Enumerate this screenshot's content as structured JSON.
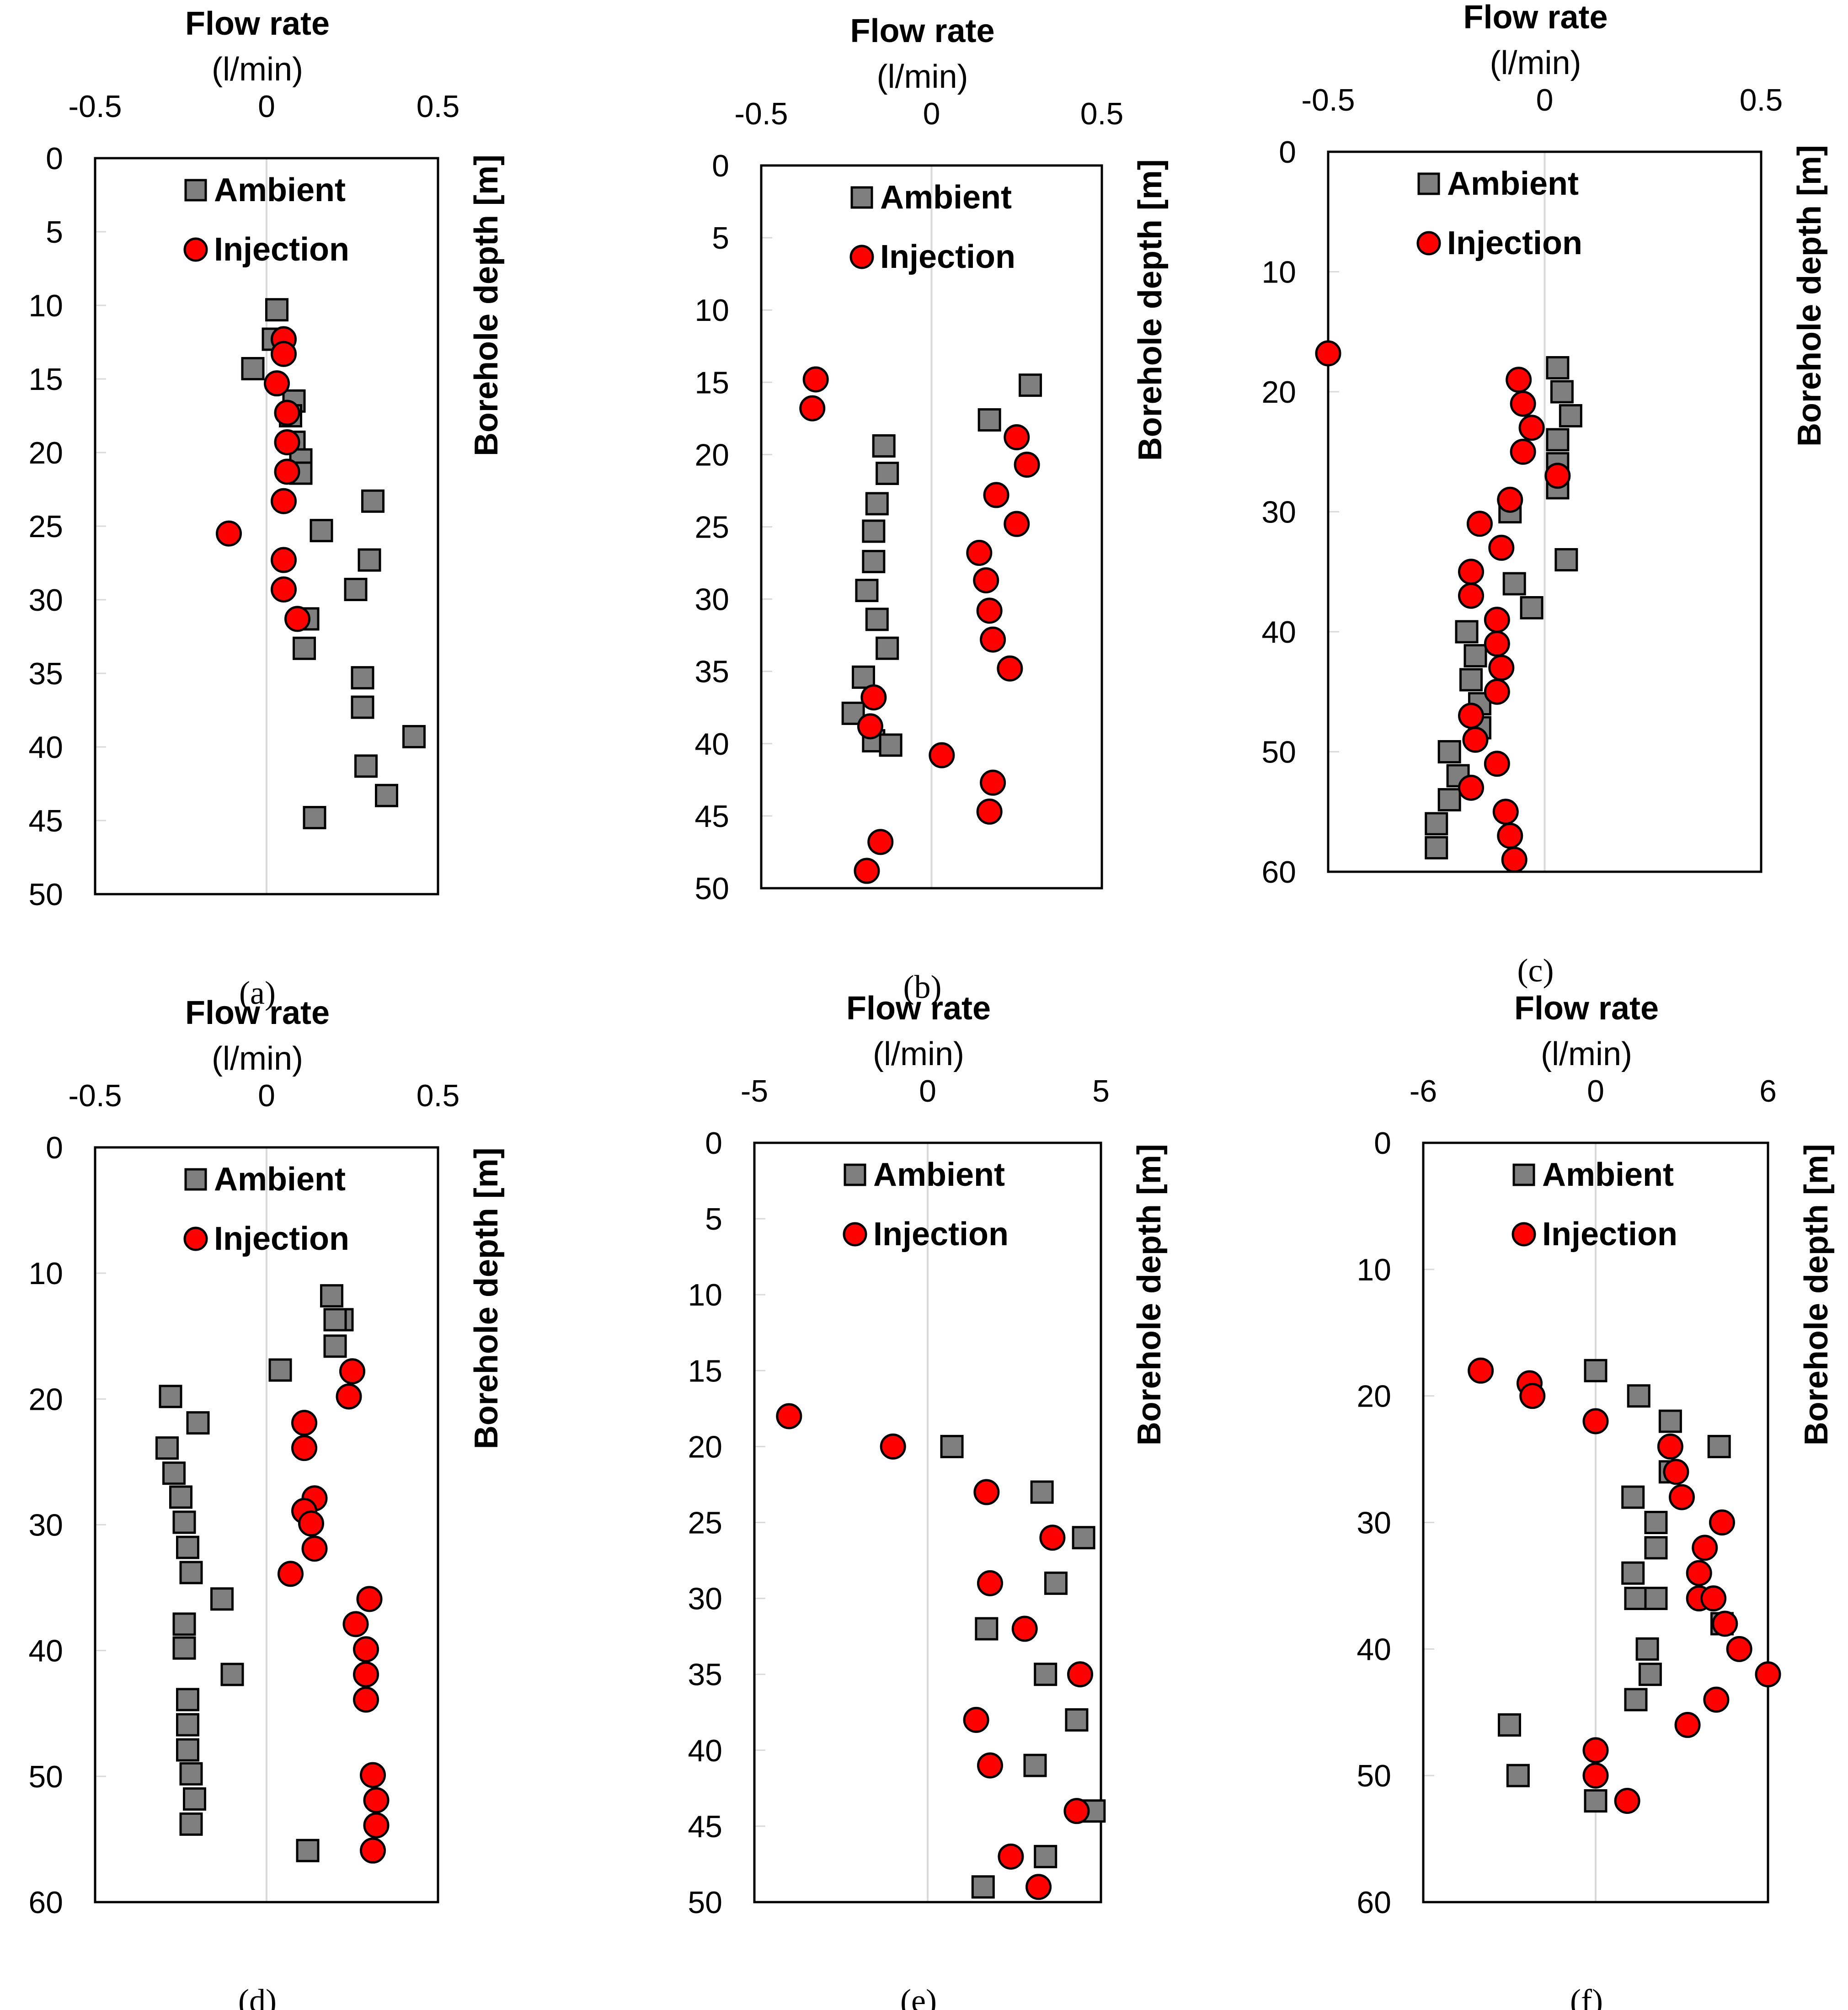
{
  "chart_data": [
    {
      "type": "scatter",
      "caption": "(a)",
      "title": "Flow rate",
      "xlabel": "(l/min)",
      "ylabel": "Borehole depth [m]",
      "xlim": [
        -0.5,
        0.5
      ],
      "xticks": [
        "-0.5",
        "0",
        "0.5"
      ],
      "ylim": [
        0,
        50
      ],
      "yticks": [
        "0",
        "5",
        "10",
        "15",
        "20",
        "25",
        "30",
        "35",
        "40",
        "45",
        "50"
      ],
      "legend": [
        "Ambient",
        "Injection"
      ],
      "series": [
        {
          "name": "Ambient",
          "marker": "square",
          "color": "#7f7f7f",
          "points": [
            [
              0.03,
              10.3
            ],
            [
              0.02,
              12.3
            ],
            [
              -0.04,
              14.3
            ],
            [
              0.08,
              16.5
            ],
            [
              0.07,
              17.5
            ],
            [
              0.08,
              19.3
            ],
            [
              0.1,
              20.5
            ],
            [
              0.1,
              21.4
            ],
            [
              0.31,
              23.3
            ],
            [
              0.16,
              25.3
            ],
            [
              0.3,
              27.3
            ],
            [
              0.26,
              29.3
            ],
            [
              0.12,
              31.3
            ],
            [
              0.11,
              33.3
            ],
            [
              0.28,
              35.3
            ],
            [
              0.28,
              37.3
            ],
            [
              0.43,
              39.3
            ],
            [
              0.29,
              41.3
            ],
            [
              0.35,
              43.3
            ],
            [
              0.14,
              44.8
            ]
          ]
        },
        {
          "name": "Injection",
          "marker": "circle",
          "color": "#ff0000",
          "points": [
            [
              0.05,
              12.3
            ],
            [
              0.05,
              13.3
            ],
            [
              0.03,
              15.3
            ],
            [
              0.06,
              17.3
            ],
            [
              0.06,
              19.3
            ],
            [
              0.06,
              21.3
            ],
            [
              0.05,
              23.3
            ],
            [
              -0.11,
              25.5
            ],
            [
              0.05,
              27.3
            ],
            [
              0.05,
              29.3
            ],
            [
              0.09,
              31.3
            ]
          ]
        }
      ]
    },
    {
      "type": "scatter",
      "caption": "(b)",
      "title": "Flow rate",
      "xlabel": "(l/min)",
      "ylabel": "Borehole depth [m]",
      "xlim": [
        -0.5,
        0.5
      ],
      "xticks": [
        "-0.5",
        "0",
        "0.5"
      ],
      "ylim": [
        0,
        50
      ],
      "yticks": [
        "0",
        "5",
        "10",
        "15",
        "20",
        "25",
        "30",
        "35",
        "40",
        "45",
        "50"
      ],
      "legend": [
        "Ambient",
        "Injection"
      ],
      "series": [
        {
          "name": "Ambient",
          "marker": "square",
          "color": "#7f7f7f",
          "points": [
            [
              0.29,
              15.2
            ],
            [
              0.17,
              17.6
            ],
            [
              -0.14,
              19.4
            ],
            [
              -0.13,
              21.3
            ],
            [
              -0.16,
              23.4
            ],
            [
              -0.17,
              25.3
            ],
            [
              -0.17,
              27.4
            ],
            [
              -0.19,
              29.4
            ],
            [
              -0.16,
              31.4
            ],
            [
              -0.13,
              33.4
            ],
            [
              -0.2,
              35.4
            ],
            [
              -0.23,
              37.9
            ],
            [
              -0.17,
              39.8
            ],
            [
              -0.12,
              40.1
            ]
          ]
        },
        {
          "name": "Injection",
          "marker": "circle",
          "color": "#ff0000",
          "points": [
            [
              -0.34,
              14.8
            ],
            [
              -0.35,
              16.8
            ],
            [
              0.25,
              18.8
            ],
            [
              0.28,
              20.7
            ],
            [
              0.19,
              22.8
            ],
            [
              0.25,
              24.8
            ],
            [
              0.14,
              26.8
            ],
            [
              0.16,
              28.7
            ],
            [
              0.17,
              30.8
            ],
            [
              0.18,
              32.8
            ],
            [
              0.23,
              34.8
            ],
            [
              -0.17,
              36.8
            ],
            [
              -0.18,
              38.8
            ],
            [
              0.03,
              40.8
            ],
            [
              0.18,
              42.7
            ],
            [
              0.17,
              44.7
            ],
            [
              -0.15,
              46.8
            ],
            [
              -0.19,
              48.8
            ]
          ]
        }
      ]
    },
    {
      "type": "scatter",
      "caption": "(c)",
      "title": "Flow rate",
      "xlabel": "(l/min)",
      "ylabel": "Borehole depth [m]",
      "xlim": [
        -0.5,
        0.5
      ],
      "xticks": [
        "-0.5",
        "0",
        "0.5"
      ],
      "ylim": [
        0,
        60
      ],
      "yticks": [
        "0",
        "10",
        "20",
        "30",
        "40",
        "50",
        "60"
      ],
      "legend": [
        "Ambient",
        "Injection"
      ],
      "series": [
        {
          "name": "Ambient",
          "marker": "square",
          "color": "#7f7f7f",
          "points": [
            [
              0.03,
              18.0
            ],
            [
              0.04,
              20.0
            ],
            [
              0.06,
              22.0
            ],
            [
              0.03,
              24.0
            ],
            [
              0.03,
              26.0
            ],
            [
              0.03,
              28.0
            ],
            [
              -0.08,
              30.0
            ],
            [
              0.05,
              34.0
            ],
            [
              -0.07,
              36.0
            ],
            [
              -0.03,
              38.0
            ],
            [
              -0.18,
              40.0
            ],
            [
              -0.16,
              42.0
            ],
            [
              -0.17,
              44.0
            ],
            [
              -0.15,
              46.0
            ],
            [
              -0.15,
              48.0
            ],
            [
              -0.22,
              50.0
            ],
            [
              -0.2,
              52.0
            ],
            [
              -0.22,
              54.0
            ],
            [
              -0.25,
              56.0
            ],
            [
              -0.25,
              58.0
            ]
          ]
        },
        {
          "name": "Injection",
          "marker": "circle",
          "color": "#ff0000",
          "points": [
            [
              -0.5,
              16.8
            ],
            [
              -0.06,
              19.0
            ],
            [
              -0.05,
              21.0
            ],
            [
              -0.03,
              23.0
            ],
            [
              -0.05,
              25.0
            ],
            [
              0.03,
              27.0
            ],
            [
              -0.08,
              29.0
            ],
            [
              -0.15,
              31.0
            ],
            [
              -0.1,
              33.0
            ],
            [
              -0.17,
              35.0
            ],
            [
              -0.17,
              37.0
            ],
            [
              -0.11,
              39.0
            ],
            [
              -0.11,
              41.0
            ],
            [
              -0.1,
              43.0
            ],
            [
              -0.11,
              45.0
            ],
            [
              -0.17,
              47.0
            ],
            [
              -0.16,
              49.0
            ],
            [
              -0.11,
              51.0
            ],
            [
              -0.17,
              53.0
            ],
            [
              -0.09,
              55.0
            ],
            [
              -0.08,
              57.0
            ],
            [
              -0.07,
              59.0
            ]
          ]
        }
      ]
    },
    {
      "type": "scatter",
      "caption": "(d)",
      "title": "Flow rate",
      "xlabel": "(l/min)",
      "ylabel": "Borehole depth [m]",
      "xlim": [
        -0.5,
        0.5
      ],
      "xticks": [
        "-0.5",
        "0",
        "0.5"
      ],
      "ylim": [
        0,
        60
      ],
      "yticks": [
        "0",
        "10",
        "20",
        "30",
        "40",
        "50",
        "60"
      ],
      "legend": [
        "Ambient",
        "Injection"
      ],
      "series": [
        {
          "name": "Ambient",
          "marker": "square",
          "color": "#7f7f7f",
          "points": [
            [
              0.19,
              11.8
            ],
            [
              0.22,
              13.7
            ],
            [
              0.2,
              13.7
            ],
            [
              0.2,
              15.8
            ],
            [
              0.04,
              17.7
            ],
            [
              -0.28,
              19.8
            ],
            [
              -0.2,
              21.9
            ],
            [
              -0.29,
              23.9
            ],
            [
              -0.27,
              25.9
            ],
            [
              -0.25,
              27.8
            ],
            [
              -0.24,
              29.8
            ],
            [
              -0.23,
              31.8
            ],
            [
              -0.22,
              33.8
            ],
            [
              -0.13,
              35.9
            ],
            [
              -0.24,
              37.9
            ],
            [
              -0.24,
              39.8
            ],
            [
              -0.1,
              41.9
            ],
            [
              -0.23,
              43.9
            ],
            [
              -0.23,
              45.9
            ],
            [
              -0.23,
              47.9
            ],
            [
              -0.22,
              49.8
            ],
            [
              -0.21,
              51.8
            ],
            [
              -0.22,
              53.8
            ],
            [
              0.12,
              55.9
            ]
          ]
        },
        {
          "name": "Injection",
          "marker": "circle",
          "color": "#ff0000",
          "points": [
            [
              0.25,
              17.8
            ],
            [
              0.24,
              19.8
            ],
            [
              0.11,
              21.9
            ],
            [
              0.11,
              23.9
            ],
            [
              0.14,
              27.9
            ],
            [
              0.11,
              28.9
            ],
            [
              0.13,
              29.9
            ],
            [
              0.14,
              31.9
            ],
            [
              0.07,
              33.9
            ],
            [
              0.3,
              35.9
            ],
            [
              0.26,
              37.9
            ],
            [
              0.29,
              39.9
            ],
            [
              0.29,
              41.9
            ],
            [
              0.29,
              43.9
            ],
            [
              0.31,
              49.9
            ],
            [
              0.32,
              51.9
            ],
            [
              0.32,
              53.9
            ],
            [
              0.31,
              55.9
            ]
          ]
        }
      ]
    },
    {
      "type": "scatter",
      "caption": "(e)",
      "title": "Flow rate",
      "xlabel": "(l/min)",
      "ylabel": "Borehole depth [m]",
      "xlim": [
        -5,
        5
      ],
      "xticks": [
        "-5",
        "0",
        "5"
      ],
      "ylim": [
        0,
        50
      ],
      "yticks": [
        "0",
        "5",
        "10",
        "15",
        "20",
        "25",
        "30",
        "35",
        "40",
        "45",
        "50"
      ],
      "legend": [
        "Ambient",
        "Injection"
      ],
      "series": [
        {
          "name": "Ambient",
          "marker": "square",
          "color": "#7f7f7f",
          "points": [
            [
              0.7,
              20.0
            ],
            [
              3.3,
              23.0
            ],
            [
              4.5,
              26.0
            ],
            [
              3.7,
              29.0
            ],
            [
              1.7,
              32.0
            ],
            [
              3.4,
              35.0
            ],
            [
              4.3,
              38.0
            ],
            [
              3.1,
              41.0
            ],
            [
              4.8,
              44.0
            ],
            [
              3.4,
              47.0
            ],
            [
              1.6,
              49.0
            ]
          ]
        },
        {
          "name": "Injection",
          "marker": "circle",
          "color": "#ff0000",
          "points": [
            [
              -4.0,
              18.0
            ],
            [
              -1.0,
              20.0
            ],
            [
              1.7,
              23.0
            ],
            [
              3.6,
              26.0
            ],
            [
              1.8,
              29.0
            ],
            [
              2.8,
              32.0
            ],
            [
              4.4,
              35.0
            ],
            [
              1.4,
              38.0
            ],
            [
              1.8,
              41.0
            ],
            [
              4.3,
              44.0
            ],
            [
              2.4,
              47.0
            ],
            [
              3.2,
              49.0
            ]
          ]
        }
      ]
    },
    {
      "type": "scatter",
      "caption": "(f)",
      "title": "Flow rate",
      "xlabel": "(l/min)",
      "ylabel": "Borehole depth [m]",
      "xlim": [
        -6,
        6
      ],
      "xticks": [
        "-6",
        "0",
        "6"
      ],
      "ylim": [
        0,
        60
      ],
      "yticks": [
        "0",
        "10",
        "20",
        "30",
        "40",
        "50",
        "60"
      ],
      "legend": [
        "Ambient",
        "Injection"
      ],
      "series": [
        {
          "name": "Ambient",
          "marker": "square",
          "color": "#7f7f7f",
          "points": [
            [
              0.0,
              18.0
            ],
            [
              1.5,
              20.0
            ],
            [
              2.6,
              22.0
            ],
            [
              4.3,
              24.0
            ],
            [
              2.6,
              26.0
            ],
            [
              1.3,
              28.0
            ],
            [
              2.1,
              30.0
            ],
            [
              2.1,
              32.0
            ],
            [
              1.3,
              34.0
            ],
            [
              1.4,
              36.0
            ],
            [
              2.1,
              36.0
            ],
            [
              4.4,
              38.0
            ],
            [
              1.8,
              40.0
            ],
            [
              1.9,
              42.0
            ],
            [
              1.4,
              44.0
            ],
            [
              -3.0,
              46.0
            ],
            [
              -2.7,
              50.0
            ],
            [
              0.0,
              52.0
            ]
          ]
        },
        {
          "name": "Injection",
          "marker": "circle",
          "color": "#ff0000",
          "points": [
            [
              -4.0,
              18.0
            ],
            [
              -2.3,
              19.0
            ],
            [
              -2.2,
              20.0
            ],
            [
              0.0,
              22.0
            ],
            [
              2.6,
              24.0
            ],
            [
              2.8,
              26.0
            ],
            [
              3.0,
              28.0
            ],
            [
              4.4,
              30.0
            ],
            [
              3.8,
              32.0
            ],
            [
              3.6,
              34.0
            ],
            [
              3.6,
              36.0
            ],
            [
              4.1,
              36.0
            ],
            [
              4.5,
              38.0
            ],
            [
              5.0,
              40.0
            ],
            [
              6.0,
              42.0
            ],
            [
              4.2,
              44.0
            ],
            [
              3.2,
              46.0
            ],
            [
              0.0,
              48.0
            ],
            [
              0.0,
              50.0
            ],
            [
              1.1,
              52.0
            ]
          ]
        }
      ]
    }
  ]
}
